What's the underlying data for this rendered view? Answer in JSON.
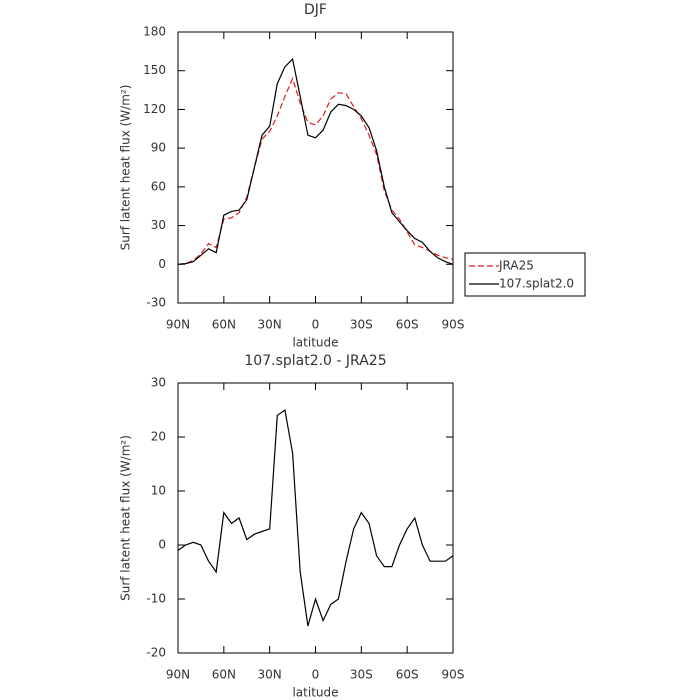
{
  "chart_data": [
    {
      "type": "line",
      "title": "DJF",
      "xlabel": "latitude",
      "ylabel": "Surf latent heat flux (W/m²)",
      "x": [
        90,
        85,
        80,
        75,
        70,
        65,
        60,
        55,
        50,
        45,
        40,
        35,
        30,
        25,
        20,
        15,
        10,
        5,
        0,
        -5,
        -10,
        -15,
        -20,
        -25,
        -30,
        -35,
        -40,
        -45,
        -50,
        -55,
        -60,
        -65,
        -70,
        -75,
        -80,
        -85,
        -90
      ],
      "series": [
        {
          "name": "JRA25",
          "color": "#e41a1c",
          "dash": true,
          "values": [
            0,
            0.5,
            3,
            8,
            16,
            13,
            35,
            36,
            40,
            52,
            75,
            97,
            103,
            115,
            130,
            144,
            125,
            110,
            108,
            115,
            128,
            133,
            132,
            122,
            113,
            100,
            85,
            57,
            42,
            35,
            25,
            15,
            13,
            10,
            7,
            5,
            4
          ]
        },
        {
          "name": "107.splat2.0",
          "color": "#000000",
          "dash": false,
          "values": [
            0,
            0.5,
            2,
            7,
            12,
            9,
            38,
            41,
            42,
            50,
            75,
            100,
            107,
            140,
            153,
            159,
            130,
            100,
            98,
            104,
            118,
            124,
            123,
            120,
            115,
            106,
            88,
            60,
            40,
            33,
            26,
            20,
            17,
            10,
            5,
            2,
            0
          ]
        }
      ],
      "xlim": [
        90,
        -90
      ],
      "xticks": [
        {
          "value": 90,
          "label": "90N"
        },
        {
          "value": 60,
          "label": "60N"
        },
        {
          "value": 30,
          "label": "30N"
        },
        0,
        {
          "value": -30,
          "label": "30S"
        },
        {
          "value": -60,
          "label": "60S"
        },
        {
          "value": -90,
          "label": "90S"
        }
      ],
      "ylim": [
        -30,
        180
      ],
      "yticks": [
        -30,
        0,
        30,
        60,
        90,
        120,
        150,
        180
      ],
      "legend": "right"
    },
    {
      "type": "line",
      "title": "107.splat2.0 - JRA25",
      "xlabel": "latitude",
      "ylabel": "Surf latent heat flux (W/m²)",
      "x": [
        90,
        85,
        80,
        75,
        70,
        65,
        60,
        55,
        50,
        45,
        40,
        35,
        30,
        25,
        20,
        15,
        10,
        5,
        0,
        -5,
        -10,
        -15,
        -20,
        -25,
        -30,
        -35,
        -40,
        -45,
        -50,
        -55,
        -60,
        -65,
        -70,
        -75,
        -80,
        -85,
        -90
      ],
      "values": [
        -1,
        0,
        0.5,
        0,
        -3,
        -5,
        6,
        4,
        5,
        1,
        2,
        2.5,
        3,
        24,
        25,
        17,
        -5,
        -15,
        -10,
        -14,
        -11,
        -10,
        -3,
        3,
        6,
        4,
        -2,
        -4,
        -4,
        0,
        3,
        5,
        0,
        -3,
        -3,
        -3,
        -2
      ],
      "color": "#000000",
      "xlim": [
        90,
        -90
      ],
      "xticks": [
        {
          "value": 90,
          "label": "90N"
        },
        {
          "value": 60,
          "label": "60N"
        },
        {
          "value": 30,
          "label": "30N"
        },
        0,
        {
          "value": -30,
          "label": "30S"
        },
        {
          "value": -60,
          "label": "60S"
        },
        {
          "value": -90,
          "label": "90S"
        }
      ],
      "ylim": [
        -20,
        30
      ],
      "yticks": [
        -20,
        -10,
        0,
        10,
        20,
        30
      ]
    }
  ]
}
